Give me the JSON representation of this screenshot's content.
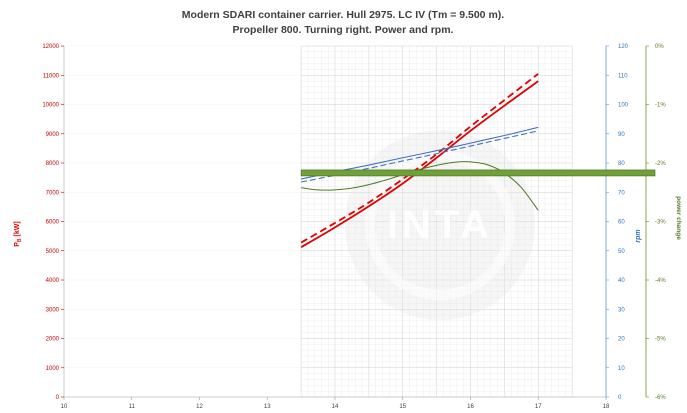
{
  "chart_data": {
    "type": "line",
    "title_line1": "Modern SDARI container carrier. Hull 2975. LC IV (Tm = 9.500 m).",
    "title_line2": "Propeller 800. Turning right. Power and rpm.",
    "xlim": [
      10,
      18
    ],
    "x_ticks": [
      "10",
      "11",
      "12",
      "13",
      "14",
      "15",
      "16",
      "17",
      "18"
    ],
    "y_power": {
      "label_main": "P",
      "label_sub": "B",
      "label_unit": " [kW]",
      "ylim": [
        0,
        12000
      ],
      "ticks": [
        "0",
        "1000",
        "2000",
        "3000",
        "4000",
        "5000",
        "6000",
        "7000",
        "8000",
        "9000",
        "10000",
        "11000",
        "12000"
      ]
    },
    "y_rpm": {
      "label": "rpm",
      "ylim": [
        0,
        120
      ],
      "ticks": [
        "0",
        "10",
        "20",
        "30",
        "40",
        "50",
        "60",
        "70",
        "80",
        "90",
        "100",
        "110",
        "120"
      ]
    },
    "y_change": {
      "label": "power change",
      "ylim": [
        -6,
        0
      ],
      "ticks": [
        "-6%",
        "-5%",
        "-4%",
        "-3%",
        "-2%",
        "-1%",
        "0%"
      ]
    },
    "watermark": "INTA",
    "series": [
      {
        "axis": "power",
        "style": "solid",
        "color": "#e00000",
        "x": [
          13.5,
          14,
          14.5,
          15,
          15.5,
          16,
          16.5,
          17
        ],
        "values": [
          5120,
          5800,
          6520,
          7300,
          8180,
          9100,
          9960,
          10800
        ]
      },
      {
        "axis": "power",
        "style": "dashed",
        "color": "#e00000",
        "x": [
          13.5,
          14,
          14.5,
          15,
          15.5,
          16,
          16.5,
          17
        ],
        "values": [
          5280,
          5950,
          6650,
          7450,
          8300,
          9250,
          10150,
          11050
        ]
      },
      {
        "axis": "rpm",
        "style": "solid",
        "color": "#4472c4",
        "x": [
          13.5,
          14,
          14.5,
          15,
          15.5,
          16,
          16.5,
          17
        ],
        "values": [
          74.5,
          77,
          79.3,
          81.8,
          84.2,
          86.8,
          89.4,
          92.2
        ]
      },
      {
        "axis": "rpm",
        "style": "dashed",
        "color": "#4472c4",
        "x": [
          13.5,
          14,
          14.5,
          15,
          15.5,
          16,
          16.5,
          17
        ],
        "values": [
          73.5,
          75.8,
          78.2,
          80.7,
          83.2,
          85.8,
          88.4,
          91
        ]
      },
      {
        "axis": "change",
        "style": "solid",
        "color": "#4e7a26",
        "x": [
          13.5,
          13.75,
          14,
          14.25,
          14.5,
          14.75,
          15,
          15.25,
          15.5,
          15.75,
          16,
          16.25,
          16.5,
          16.75,
          17
        ],
        "values": [
          -2.42,
          -2.46,
          -2.46,
          -2.43,
          -2.37,
          -2.29,
          -2.2,
          -2.11,
          -2.04,
          -1.99,
          -1.98,
          -2.03,
          -2.17,
          -2.42,
          -2.81
        ]
      },
      {
        "axis": "change",
        "style": "band",
        "color": "#70a03a",
        "x": [
          10,
          18
        ],
        "values": [
          -2.17,
          -2.17
        ]
      }
    ]
  }
}
